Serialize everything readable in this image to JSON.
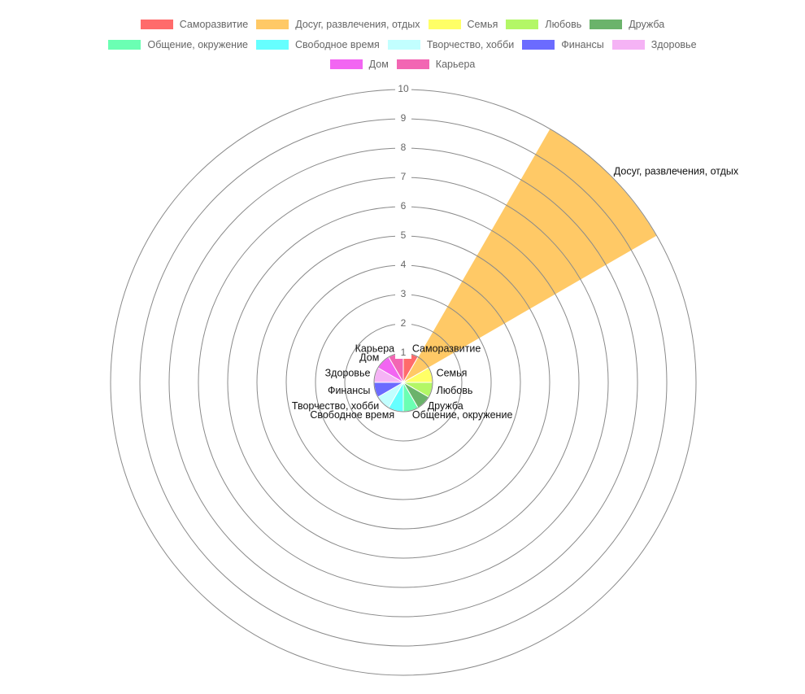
{
  "chart_data": {
    "type": "polarArea",
    "title": "",
    "r_range": [
      0,
      10
    ],
    "r_ticks": [
      "1",
      "2",
      "3",
      "4",
      "5",
      "6",
      "7",
      "8",
      "9",
      "10"
    ],
    "grid": true,
    "legend_position": "top",
    "series": [
      {
        "label": "Саморазвитие",
        "value": 1,
        "color": "#ff6b6b"
      },
      {
        "label": "Досуг, развлечения, отдых",
        "value": 10,
        "color": "#ffc966"
      },
      {
        "label": "Семья",
        "value": 1,
        "color": "#ffff66"
      },
      {
        "label": "Любовь",
        "value": 1,
        "color": "#b3f766"
      },
      {
        "label": "Дружба",
        "value": 1,
        "color": "#6bb36b"
      },
      {
        "label": "Общение, окружение",
        "value": 1,
        "color": "#6bffb3"
      },
      {
        "label": "Свободное время",
        "value": 1,
        "color": "#66ffff"
      },
      {
        "label": "Творчество, хобби",
        "value": 1,
        "color": "#c2ffff"
      },
      {
        "label": "Финансы",
        "value": 1,
        "color": "#6b6bff"
      },
      {
        "label": "Здоровье",
        "value": 1,
        "color": "#f5b3f5"
      },
      {
        "label": "Дом",
        "value": 1,
        "color": "#f266f2"
      },
      {
        "label": "Карьера",
        "value": 1,
        "color": "#f266b3"
      }
    ]
  }
}
